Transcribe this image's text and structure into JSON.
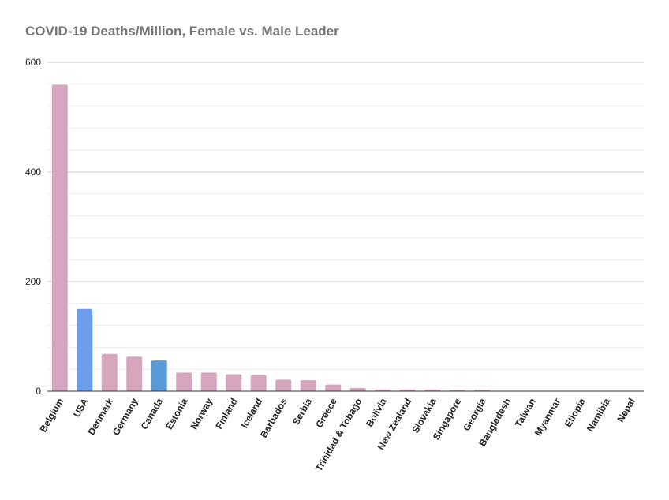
{
  "chart_data": {
    "type": "bar",
    "title": "COVID-19 Deaths/Million, Female vs. Male Leader",
    "xlabel": "",
    "ylabel": "",
    "ylim": [
      0,
      600
    ],
    "yticks": [
      "0",
      "200",
      "400",
      "600"
    ],
    "grid": true,
    "legend": "none",
    "colors": {
      "female_leader": "#d5a6bd",
      "male_leader_usa": "#6d9eeb",
      "male_leader_canada": "#5b9bd5"
    },
    "categories": [
      "Belgium",
      "USA",
      "Denmark",
      "Germany",
      "Canada",
      "Estonia",
      "Norway",
      "Finland",
      "Iceland",
      "Barbados",
      "Serbia",
      "Greece",
      "Trinidad & Tobago",
      "Bolivia",
      "New Zealand",
      "Slovakia",
      "Singapore",
      "Georgia",
      "Bangladesh",
      "Taiwan",
      "Myanmar",
      "Etiopia",
      "Namibia",
      "Nepal"
    ],
    "values": [
      559,
      150,
      68,
      63,
      56,
      34,
      34,
      31,
      29,
      21,
      20,
      12,
      6,
      3,
      3,
      3,
      2,
      2,
      0.5,
      0.3,
      0.1,
      0.1,
      0,
      0
    ],
    "bar_colors": [
      "#d5a6bd",
      "#6d9eeb",
      "#d5a6bd",
      "#d5a6bd",
      "#5b9bd5",
      "#d5a6bd",
      "#d5a6bd",
      "#d5a6bd",
      "#d5a6bd",
      "#d5a6bd",
      "#d5a6bd",
      "#d5a6bd",
      "#d5a6bd",
      "#d5a6bd",
      "#d5a6bd",
      "#d5a6bd",
      "#d5a6bd",
      "#d5a6bd",
      "#d5a6bd",
      "#d5a6bd",
      "#d5a6bd",
      "#d5a6bd",
      "#d5a6bd",
      "#d5a6bd"
    ]
  }
}
